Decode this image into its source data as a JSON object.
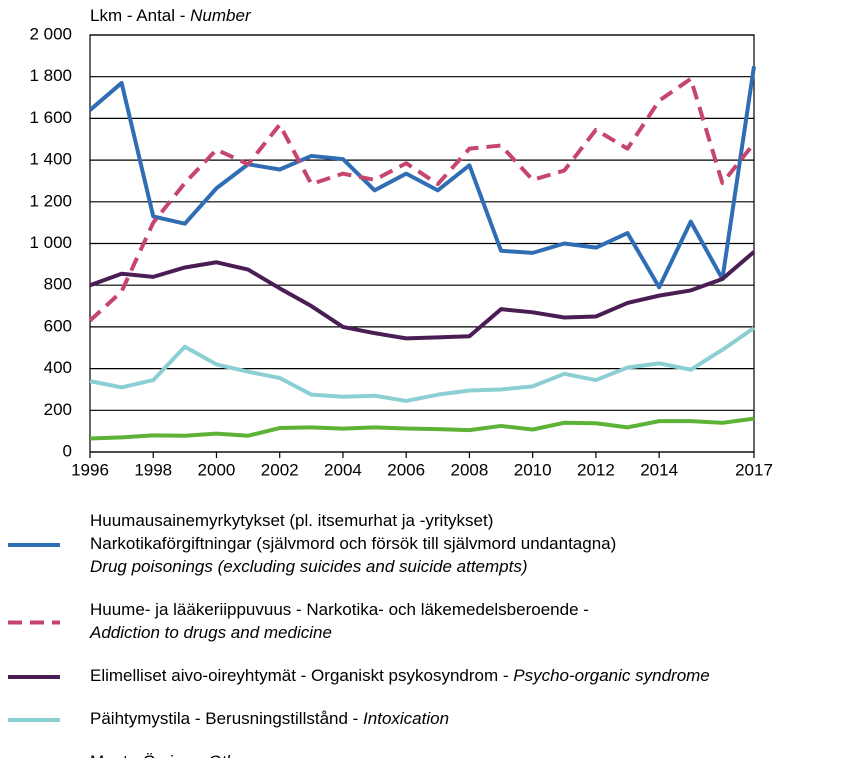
{
  "chart_data": {
    "type": "line",
    "y_label": [
      "Lkm - Antal - ",
      {
        "text": "Number",
        "italic": true
      }
    ],
    "x": [
      1996,
      1997,
      1998,
      1999,
      2000,
      2001,
      2002,
      2003,
      2004,
      2005,
      2006,
      2007,
      2008,
      2009,
      2010,
      2011,
      2012,
      2013,
      2014,
      2015,
      2016,
      2017
    ],
    "xlim": [
      1996,
      2017
    ],
    "xticks": [
      1996,
      1998,
      2000,
      2002,
      2004,
      2006,
      2008,
      2010,
      2012,
      2014,
      2017
    ],
    "ylim": [
      0,
      2000
    ],
    "yticks": [
      0,
      200,
      400,
      600,
      800,
      {
        "value": 1000,
        "label": "1 000"
      },
      {
        "value": 1200,
        "label": "1 200"
      },
      {
        "value": 1400,
        "label": "1 400"
      },
      {
        "value": 1600,
        "label": "1 600"
      },
      {
        "value": 1800,
        "label": "1 800"
      },
      {
        "value": 2000,
        "label": "2 000"
      }
    ],
    "grid": true,
    "series": [
      {
        "name": [
          [
            "Huumausainemyrkytykset (pl. itsemurhat ja -yritykset)"
          ],
          [
            "Narkotikaförgiftningar (självmord och försök till självmord undantagna)"
          ],
          [
            {
              "text": "Drug poisonings (excluding suicides and suicide attempts)",
              "italic": true
            }
          ]
        ],
        "color": "#2f6db5",
        "values": [
          1640,
          1770,
          1130,
          1095,
          1265,
          1380,
          1355,
          1420,
          1405,
          1255,
          1335,
          1255,
          1375,
          965,
          955,
          1000,
          980,
          1050,
          790,
          1105,
          830,
          1850
        ]
      },
      {
        "name": [
          [
            "Huume- ja lääkeriippuvuus - Narkotika- och läkemedelsberoende -"
          ],
          [
            {
              "text": "Addiction to drugs and medicine",
              "italic": true
            }
          ]
        ],
        "color": "#c6456e",
        "dashed": true,
        "values": [
          630,
          770,
          1100,
          1290,
          1450,
          1380,
          1570,
          1285,
          1335,
          1305,
          1385,
          1285,
          1455,
          1470,
          1305,
          1350,
          1545,
          1455,
          1685,
          1790,
          1290,
          1480
        ]
      },
      {
        "name": [
          [
            "Elimelliset aivo-oireyhtymät - Organiskt psykosyndrom - ",
            {
              "text": "Psycho-organic syndrome",
              "italic": true
            }
          ]
        ],
        "color": "#4b1d55",
        "values": [
          800,
          855,
          840,
          885,
          910,
          875,
          785,
          700,
          600,
          570,
          545,
          550,
          555,
          685,
          670,
          645,
          650,
          715,
          750,
          775,
          830,
          960
        ]
      },
      {
        "name": [
          [
            "Päihtymystila - Berusningstillstånd - ",
            {
              "text": "Intoxication",
              "italic": true
            }
          ]
        ],
        "color": "#8ccfd3",
        "values": [
          340,
          310,
          345,
          505,
          420,
          385,
          355,
          275,
          265,
          270,
          245,
          275,
          295,
          300,
          315,
          375,
          345,
          405,
          425,
          395,
          490,
          595
        ]
      },
      {
        "name": [
          [
            "Muut - Övriga - ",
            {
              "text": "Other",
              "italic": true
            }
          ]
        ],
        "color": "#5cb337",
        "values": [
          65,
          70,
          80,
          78,
          88,
          78,
          115,
          118,
          112,
          118,
          113,
          110,
          105,
          125,
          108,
          140,
          138,
          118,
          148,
          148,
          140,
          160
        ]
      }
    ]
  }
}
